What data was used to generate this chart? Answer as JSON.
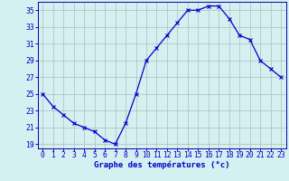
{
  "x": [
    0,
    1,
    2,
    3,
    4,
    5,
    6,
    7,
    8,
    9,
    10,
    11,
    12,
    13,
    14,
    15,
    16,
    17,
    18,
    19,
    20,
    21,
    22,
    23
  ],
  "y": [
    25,
    23.5,
    22.5,
    21.5,
    21,
    20.5,
    19.5,
    19,
    21.5,
    25,
    29,
    30.5,
    32,
    33.5,
    35,
    35,
    35.5,
    35.5,
    34,
    32,
    31.5,
    29,
    28,
    27
  ],
  "line_color": "#0000cc",
  "marker": "x",
  "marker_size": 2.5,
  "linewidth": 0.9,
  "markeredgewidth": 0.8,
  "xlabel": "Graphe des températures (°c)",
  "xlim": [
    -0.5,
    23.5
  ],
  "ylim": [
    18.5,
    36.0
  ],
  "yticks": [
    19,
    21,
    23,
    25,
    27,
    29,
    31,
    33,
    35
  ],
  "xticks": [
    0,
    1,
    2,
    3,
    4,
    5,
    6,
    7,
    8,
    9,
    10,
    11,
    12,
    13,
    14,
    15,
    16,
    17,
    18,
    19,
    20,
    21,
    22,
    23
  ],
  "bg_color": "#d4f0f0",
  "grid_color": "#b8b8b8",
  "axis_color": "#0000aa",
  "label_color": "#0000cc",
  "label_fontsize": 6.5,
  "tick_fontsize": 5.8
}
